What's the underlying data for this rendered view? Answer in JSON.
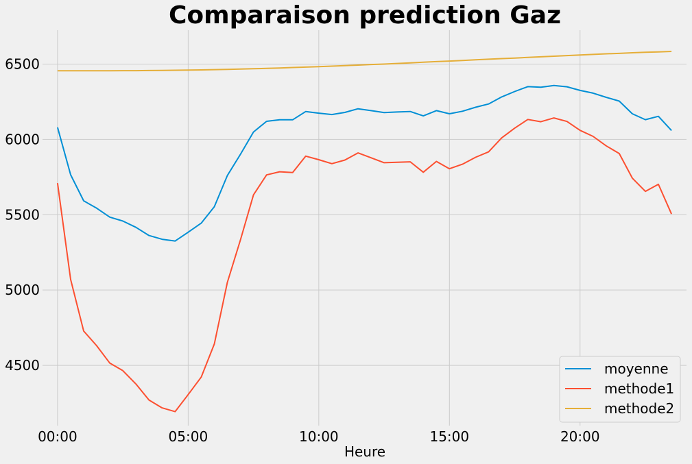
{
  "chart_data": {
    "type": "line",
    "title": "Comparaison prediction Gaz",
    "xlabel": "Heure",
    "ylabel": "",
    "xlim": [
      -1.15,
      48.15
    ],
    "ylim": [
      4100,
      6725
    ],
    "x_ticks": [
      0,
      10,
      20,
      30,
      40
    ],
    "x_tick_labels": [
      "00:00",
      "05:00",
      "10:00",
      "15:00",
      "20:00"
    ],
    "y_ticks": [
      4500,
      5000,
      5500,
      6000,
      6500
    ],
    "y_tick_labels": [
      "4500",
      "5000",
      "5500",
      "6000",
      "6500"
    ],
    "grid": true,
    "legend_position": "lower-right",
    "x": [
      0,
      1,
      2,
      3,
      4,
      5,
      6,
      7,
      8,
      9,
      10,
      11,
      12,
      13,
      14,
      15,
      16,
      17,
      18,
      19,
      20,
      21,
      22,
      23,
      24,
      25,
      26,
      27,
      28,
      29,
      30,
      31,
      32,
      33,
      34,
      35,
      36,
      37,
      38,
      39,
      40,
      41,
      42,
      43,
      44,
      45,
      46,
      47
    ],
    "series": [
      {
        "name": "moyenne",
        "color": "#008fd5",
        "values": [
          6080,
          5765,
          5592,
          5543,
          5484,
          5458,
          5416,
          5362,
          5337,
          5325,
          5384,
          5444,
          5553,
          5760,
          5901,
          6049,
          6120,
          6130,
          6130,
          6185,
          6174,
          6165,
          6179,
          6203,
          6191,
          6178,
          6182,
          6185,
          6156,
          6191,
          6170,
          6187,
          6213,
          6235,
          6282,
          6318,
          6350,
          6346,
          6358,
          6349,
          6325,
          6307,
          6279,
          6254,
          6170,
          6131,
          6153,
          6059
        ]
      },
      {
        "name": "methode1",
        "color": "#fc4f30",
        "values": [
          5710,
          5070,
          4728,
          4630,
          4515,
          4465,
          4376,
          4270,
          4218,
          4193,
          4306,
          4422,
          4642,
          5051,
          5333,
          5632,
          5764,
          5785,
          5780,
          5889,
          5865,
          5839,
          5863,
          5910,
          5878,
          5845,
          5848,
          5851,
          5782,
          5854,
          5805,
          5835,
          5881,
          5917,
          6010,
          6075,
          6132,
          6117,
          6142,
          6119,
          6060,
          6020,
          5957,
          5906,
          5743,
          5655,
          5702,
          5505
        ]
      },
      {
        "name": "methode2",
        "color": "#e5ae38",
        "values": [
          6455,
          6455,
          6455,
          6455,
          6455,
          6456,
          6456,
          6457,
          6458,
          6459,
          6460,
          6461,
          6463,
          6465,
          6467,
          6469,
          6471,
          6474,
          6477,
          6480,
          6483,
          6486,
          6490,
          6493,
          6497,
          6500,
          6504,
          6508,
          6512,
          6516,
          6520,
          6524,
          6528,
          6532,
          6536,
          6540,
          6544,
          6548,
          6552,
          6556,
          6560,
          6564,
          6568,
          6571,
          6575,
          6578,
          6581,
          6584
        ]
      }
    ]
  }
}
